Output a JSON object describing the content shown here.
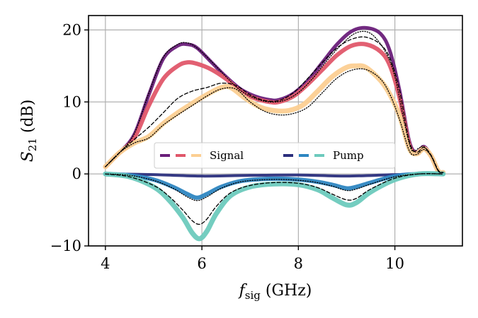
{
  "chart_data": {
    "type": "line",
    "xlabel": {
      "main": "f",
      "sub": "sig",
      "unit": " (GHz)"
    },
    "ylabel": {
      "main": "S",
      "sub": "21",
      "unit": " (dB)"
    },
    "xlim": [
      3.65,
      11.4
    ],
    "ylim": [
      -10,
      22
    ],
    "xticks": [
      4,
      6,
      8,
      10
    ],
    "yticks": [
      -10,
      0,
      10,
      20
    ],
    "xtick_labels": [
      "4",
      "6",
      "8",
      "10"
    ],
    "ytick_labels": [
      "−10",
      "0",
      "10",
      "20"
    ],
    "grid": true,
    "legend": {
      "placement": "center-right",
      "entries": [
        {
          "label": "Signal",
          "colors": [
            "#6a1f7a",
            "#e0576a",
            "#fccf92"
          ]
        },
        {
          "label": "Pump",
          "colors": [
            "#2b2f7d",
            "#2e86c1",
            "#6dcabd"
          ]
        }
      ]
    },
    "series": [
      {
        "group": "signal",
        "color": "#6a1f7a",
        "width": 4,
        "x": [
          4.0,
          4.3,
          4.6,
          4.9,
          5.2,
          5.5,
          5.7,
          5.9,
          6.2,
          6.5,
          6.8,
          7.1,
          7.4,
          7.6,
          7.9,
          8.2,
          8.5,
          8.8,
          9.1,
          9.4,
          9.7,
          9.9,
          10.1,
          10.3,
          10.45,
          10.6,
          10.75,
          10.9,
          11.0
        ],
        "y": [
          1.0,
          3.0,
          5.5,
          11.0,
          16.0,
          17.8,
          18.0,
          17.5,
          15.5,
          13.5,
          11.8,
          10.8,
          10.3,
          10.3,
          11.2,
          13.0,
          15.5,
          18.0,
          19.8,
          20.3,
          19.5,
          17.0,
          11.5,
          4.5,
          3.0,
          3.8,
          2.5,
          0.4,
          0.2
        ]
      },
      {
        "group": "signal",
        "color": "#e0576a",
        "width": 5,
        "x": [
          4.0,
          4.3,
          4.6,
          4.9,
          5.2,
          5.5,
          5.7,
          5.9,
          6.2,
          6.5,
          6.8,
          7.1,
          7.4,
          7.6,
          7.9,
          8.2,
          8.5,
          8.8,
          9.1,
          9.4,
          9.7,
          9.9,
          10.1,
          10.3,
          10.45,
          10.6,
          10.75,
          10.9,
          11.0
        ],
        "y": [
          1.0,
          3.0,
          5.0,
          9.5,
          13.2,
          15.0,
          15.5,
          15.3,
          14.5,
          13.2,
          11.5,
          10.5,
          10.0,
          10.0,
          10.8,
          12.5,
          14.5,
          16.5,
          17.8,
          18.0,
          17.0,
          15.0,
          10.5,
          4.0,
          2.9,
          3.6,
          2.5,
          0.4,
          0.2
        ]
      },
      {
        "group": "signal",
        "color": "#fccf92",
        "width": 6,
        "x": [
          4.0,
          4.3,
          4.6,
          4.9,
          5.2,
          5.5,
          5.8,
          6.1,
          6.4,
          6.6,
          6.9,
          7.2,
          7.5,
          7.8,
          8.1,
          8.4,
          8.7,
          9.0,
          9.2,
          9.4,
          9.7,
          9.9,
          10.1,
          10.3,
          10.45,
          10.6,
          10.75,
          10.9,
          11.0
        ],
        "y": [
          1.0,
          3.0,
          4.3,
          5.2,
          7.0,
          8.5,
          9.8,
          11.0,
          12.0,
          12.0,
          10.5,
          9.3,
          8.8,
          8.8,
          9.6,
          11.5,
          13.5,
          14.8,
          15.0,
          14.8,
          13.0,
          11.0,
          8.0,
          3.5,
          2.8,
          3.5,
          2.5,
          0.4,
          0.2
        ]
      },
      {
        "group": "pump",
        "color": "#2b2f7d",
        "width": 3,
        "x": [
          4.0,
          5.0,
          6.0,
          7.0,
          8.0,
          9.0,
          10.0,
          11.0
        ],
        "y": [
          0.0,
          -0.1,
          -0.3,
          -0.2,
          -0.15,
          -0.3,
          -0.1,
          0.0
        ]
      },
      {
        "group": "pump",
        "color": "#2e86c1",
        "width": 5,
        "x": [
          4.0,
          4.5,
          5.0,
          5.4,
          5.7,
          5.9,
          6.1,
          6.4,
          6.8,
          7.3,
          7.8,
          8.3,
          8.7,
          9.0,
          9.2,
          9.5,
          10.0,
          10.5,
          11.0
        ],
        "y": [
          0.0,
          -0.2,
          -0.8,
          -1.8,
          -2.8,
          -3.3,
          -2.8,
          -1.8,
          -1.0,
          -0.7,
          -0.7,
          -1.0,
          -1.5,
          -2.0,
          -1.8,
          -1.2,
          -0.3,
          0.0,
          0.0
        ]
      },
      {
        "group": "pump",
        "color": "#6dcabd",
        "width": 6,
        "x": [
          4.0,
          4.5,
          5.0,
          5.3,
          5.6,
          5.8,
          5.95,
          6.1,
          6.3,
          6.6,
          7.0,
          7.5,
          8.0,
          8.4,
          8.7,
          9.0,
          9.2,
          9.5,
          10.0,
          10.5,
          11.0
        ],
        "y": [
          0.0,
          -0.4,
          -1.8,
          -3.5,
          -6.0,
          -8.2,
          -9.0,
          -8.0,
          -5.5,
          -3.0,
          -1.8,
          -1.4,
          -1.5,
          -2.2,
          -3.3,
          -4.3,
          -4.0,
          -2.5,
          -0.8,
          0.0,
          0.0
        ]
      },
      {
        "group": "signal",
        "style": "dashed",
        "x": [
          4.0,
          4.3,
          4.6,
          4.9,
          5.2,
          5.5,
          5.8,
          6.1,
          6.4,
          6.7,
          7.0,
          7.3,
          7.6,
          7.9,
          8.2,
          8.5,
          8.8,
          9.1,
          9.4,
          9.7,
          9.9,
          10.1,
          10.3,
          10.45,
          10.6,
          10.75,
          10.9,
          11.0
        ],
        "y": [
          1.0,
          3.0,
          4.8,
          6.5,
          8.5,
          10.5,
          11.5,
          12.0,
          12.6,
          12.3,
          11.0,
          10.2,
          10.2,
          11.3,
          13.3,
          15.5,
          17.5,
          18.7,
          19.0,
          18.0,
          16.0,
          11.5,
          4.5,
          3.0,
          3.7,
          2.6,
          0.5,
          0.2
        ]
      },
      {
        "group": "signal",
        "style": "dotted",
        "x": [
          4.0,
          4.3,
          4.6,
          4.9,
          5.2,
          5.5,
          5.7,
          5.9,
          6.2,
          6.5,
          6.8,
          7.1,
          7.4,
          7.7,
          8.0,
          8.3,
          8.6,
          8.9,
          9.2,
          9.5,
          9.8,
          10.0,
          10.2,
          10.35,
          10.5,
          10.6,
          10.75,
          10.9,
          11.0
        ],
        "y": [
          1.0,
          3.0,
          5.6,
          11.2,
          16.2,
          18.0,
          18.2,
          17.5,
          15.6,
          13.5,
          11.6,
          10.5,
          10.0,
          10.2,
          11.3,
          13.3,
          15.8,
          18.0,
          19.6,
          19.5,
          17.0,
          13.5,
          7.0,
          3.3,
          3.6,
          3.8,
          2.5,
          0.4,
          0.2
        ]
      },
      {
        "group": "signal",
        "style": "dotted",
        "x": [
          4.0,
          4.3,
          4.6,
          4.9,
          5.2,
          5.5,
          5.8,
          6.1,
          6.4,
          6.7,
          7.0,
          7.3,
          7.6,
          7.9,
          8.2,
          8.5,
          8.8,
          9.1,
          9.4,
          9.7,
          9.9,
          10.1,
          10.3,
          10.45,
          10.6,
          10.75,
          10.9,
          11.0
        ],
        "y": [
          1.0,
          3.0,
          4.3,
          5.0,
          6.8,
          8.2,
          9.5,
          10.8,
          11.8,
          11.8,
          10.0,
          8.7,
          8.2,
          8.4,
          9.3,
          11.3,
          13.3,
          14.4,
          14.5,
          13.2,
          11.0,
          7.5,
          3.2,
          2.7,
          3.4,
          2.5,
          0.4,
          0.2
        ]
      },
      {
        "group": "pump",
        "style": "dashed",
        "x": [
          4.0,
          4.5,
          5.0,
          5.3,
          5.6,
          5.8,
          5.95,
          6.1,
          6.3,
          6.6,
          7.0,
          7.5,
          8.0,
          8.4,
          8.7,
          9.0,
          9.2,
          9.5,
          10.0,
          10.5,
          11.0
        ],
        "y": [
          0.0,
          -0.4,
          -1.6,
          -3.0,
          -5.0,
          -6.5,
          -7.0,
          -6.3,
          -4.5,
          -2.6,
          -1.6,
          -1.2,
          -1.3,
          -1.9,
          -2.8,
          -3.6,
          -3.4,
          -2.1,
          -0.6,
          0.0,
          0.0
        ]
      },
      {
        "group": "pump",
        "style": "dotted",
        "x": [
          4.0,
          4.5,
          5.0,
          5.4,
          5.7,
          5.9,
          6.1,
          6.4,
          6.8,
          7.3,
          7.8,
          8.3,
          8.7,
          9.0,
          9.2,
          9.5,
          10.0,
          10.5,
          11.0
        ],
        "y": [
          0.0,
          -0.2,
          -0.9,
          -2.0,
          -3.2,
          -3.7,
          -3.2,
          -2.0,
          -1.1,
          -0.8,
          -0.8,
          -1.1,
          -1.7,
          -2.3,
          -2.1,
          -1.4,
          -0.4,
          0.0,
          0.0
        ]
      }
    ]
  }
}
